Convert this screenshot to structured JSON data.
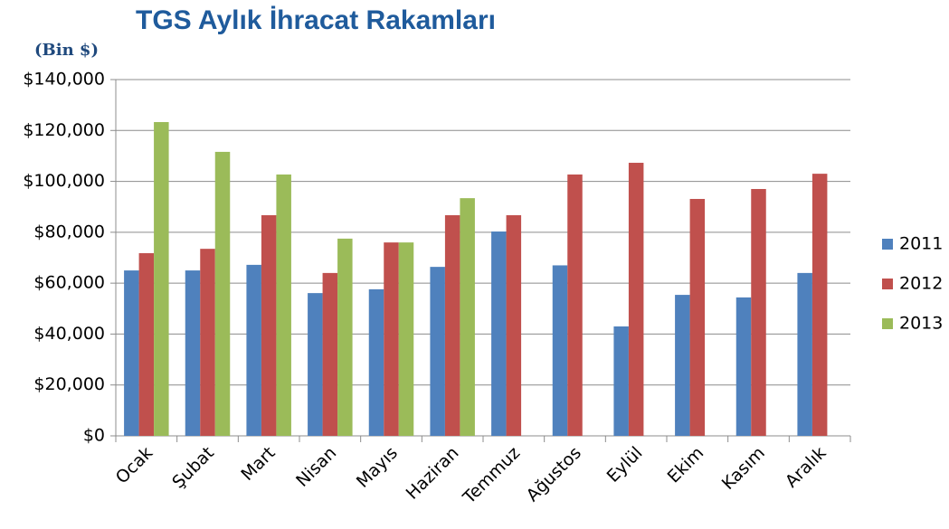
{
  "chart_data": {
    "type": "bar",
    "title": "TGS Aylık İhracat Rakamları",
    "y_label": "(Bin $)",
    "categories": [
      "Ocak",
      "Şubat",
      "Mart",
      "Nisan",
      "Mayıs",
      "Haziran",
      "Temmuz",
      "Ağustos",
      "Eylül",
      "Ekim",
      "Kasım",
      "Aralık"
    ],
    "series": [
      {
        "name": "2011",
        "color": "#4f81bd",
        "values": [
          65000,
          65000,
          67200,
          56100,
          57600,
          66400,
          80300,
          67000,
          43000,
          55400,
          54400,
          64000
        ]
      },
      {
        "name": "2012",
        "color": "#c0504d",
        "values": [
          71800,
          73500,
          86700,
          64000,
          76000,
          86700,
          86700,
          102700,
          107300,
          93100,
          97000,
          103000
        ]
      },
      {
        "name": "2013",
        "color": "#9bbb59",
        "values": [
          123300,
          111600,
          102700,
          77500,
          76000,
          93400,
          null,
          null,
          null,
          null,
          null,
          null
        ]
      }
    ],
    "ylim": [
      0,
      140000
    ],
    "yticks": [
      {
        "value": 0,
        "label": "$0"
      },
      {
        "value": 20000,
        "label": "$20,000"
      },
      {
        "value": 40000,
        "label": "$40,000"
      },
      {
        "value": 60000,
        "label": "$60,000"
      },
      {
        "value": 80000,
        "label": "$80,000"
      },
      {
        "value": 100000,
        "label": "$100,000"
      },
      {
        "value": 120000,
        "label": "$120,000"
      },
      {
        "value": 140000,
        "label": "$140,000"
      }
    ],
    "grid": true,
    "legend": "right"
  }
}
